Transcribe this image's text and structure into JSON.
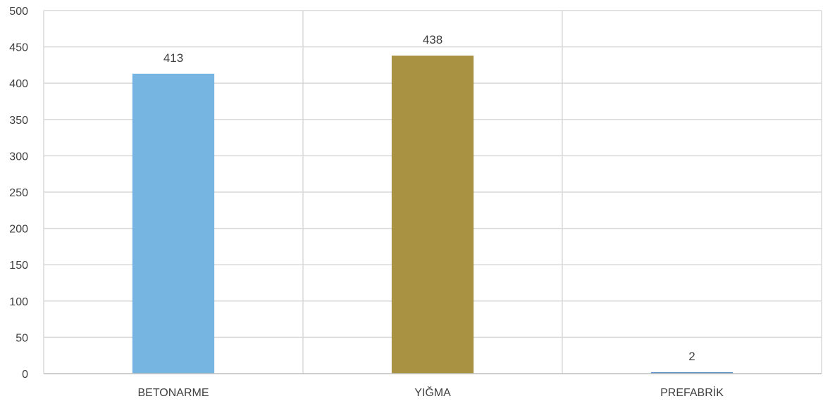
{
  "chart_data": {
    "type": "bar",
    "title": "",
    "xlabel": "",
    "ylabel": "",
    "categories": [
      "BETONARME",
      "YIĞMA",
      "PREFABRİK"
    ],
    "values": [
      413,
      438,
      2
    ],
    "data_labels": [
      "413",
      "438",
      "2"
    ],
    "colors": [
      "#76b5e2",
      "#a99342",
      "#5b8fc7"
    ],
    "ylim": [
      0,
      500
    ],
    "yticks": [
      0,
      50,
      100,
      150,
      200,
      250,
      300,
      350,
      400,
      450,
      500
    ],
    "ytick_labels": [
      "0",
      "50",
      "100",
      "150",
      "200",
      "250",
      "300",
      "350",
      "400",
      "450",
      "500"
    ],
    "grid": true,
    "legend": "none"
  },
  "style": {
    "grid_color": "#d9d9d9",
    "axis_color": "#bfbfbf",
    "text_color": "#404040"
  }
}
